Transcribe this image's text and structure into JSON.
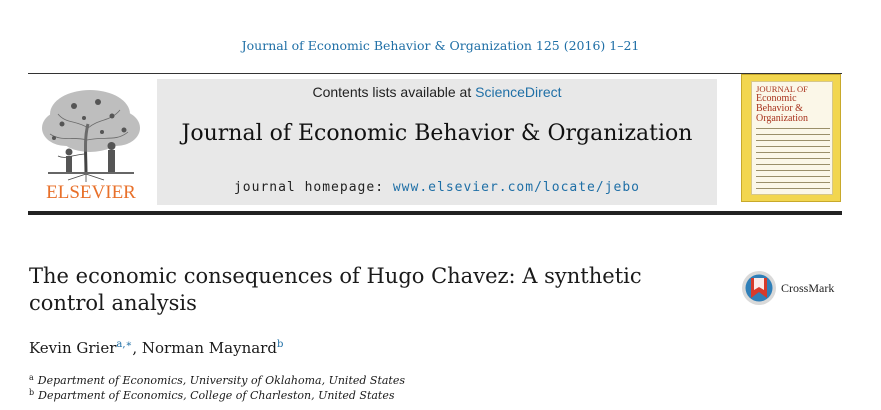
{
  "header": {
    "journal_ref": "Journal of Economic Behavior & Organization 125 (2016) 1–21"
  },
  "publisher": {
    "name": "ELSEVIER"
  },
  "banner": {
    "contents_prefix": "Contents lists available at ",
    "contents_link": "ScienceDirect",
    "journal_title": "Journal of Economic Behavior & Organization",
    "homepage_prefix": "journal homepage: ",
    "homepage_url": "www.elsevier.com/locate/jebo"
  },
  "cover": {
    "title_line1": "JOURNAL OF",
    "title_line2": "Economic",
    "title_line3": "Behavior &",
    "title_line4": "Organization"
  },
  "article": {
    "title_line1": "The economic consequences of Hugo Chavez: A synthetic",
    "title_line2": "control analysis"
  },
  "crossmark": {
    "label": "CrossMark"
  },
  "authors": [
    {
      "name": "Kevin Grier",
      "marks": "a,∗"
    },
    {
      "name": "Norman Maynard",
      "marks": "b"
    }
  ],
  "affiliations": [
    {
      "mark": "a",
      "text": "Department of Economics, University of Oklahoma, United States"
    },
    {
      "mark": "b",
      "text": "Department of Economics, College of Charleston, United States"
    }
  ],
  "colors": {
    "link": "#1f6fa6",
    "publisher_orange": "#e8702a",
    "banner_bg": "#e8e8e8",
    "cover_yellow": "#f2d64f",
    "cover_red": "#a8331d"
  }
}
